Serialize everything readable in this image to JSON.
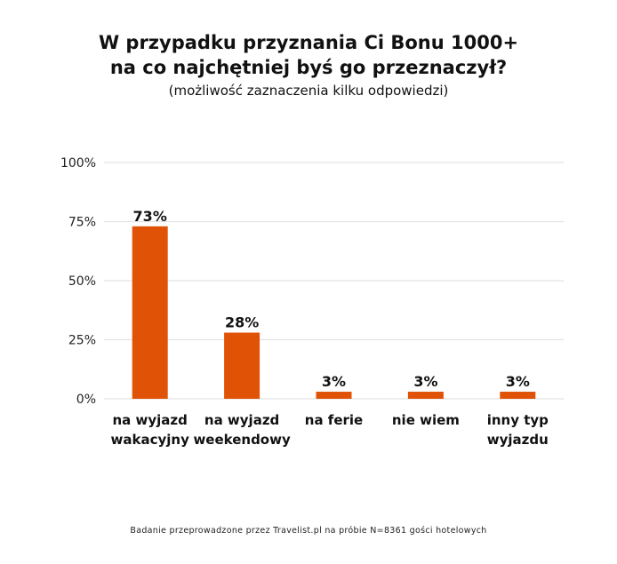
{
  "chart_data": {
    "type": "bar",
    "title": "W przypadku przyznania Ci Bonu 1000+ na co najchętniej byś go przeznaczył?",
    "title_lines": [
      "W przypadku przyznania Ci Bonu 1000+",
      "na co najchętniej byś go przeznaczył?"
    ],
    "subtitle": "(możliwość zaznaczenia kilku odpowiedzi)",
    "categories": [
      [
        "na wyjazd",
        "wakacyjny"
      ],
      [
        "na wyjazd",
        "weekendowy"
      ],
      [
        "na ferie"
      ],
      [
        "nie wiem"
      ],
      [
        "inny typ",
        "wyjazdu"
      ]
    ],
    "values": [
      73,
      28,
      3,
      3,
      3
    ],
    "data_labels": [
      "73%",
      "28%",
      "3%",
      "3%",
      "3%"
    ],
    "yticks": [
      0,
      25,
      50,
      75,
      100
    ],
    "ytick_labels": [
      "0%",
      "25%",
      "50%",
      "75%",
      "100%"
    ],
    "ylim": [
      0,
      100
    ],
    "xlabel": "",
    "ylabel": "",
    "grid": true,
    "bar_color": "#e05206",
    "footnote": "Badanie przeprowadzone przez Travelist.pl na próbie N=8361 gości hotelowych"
  }
}
